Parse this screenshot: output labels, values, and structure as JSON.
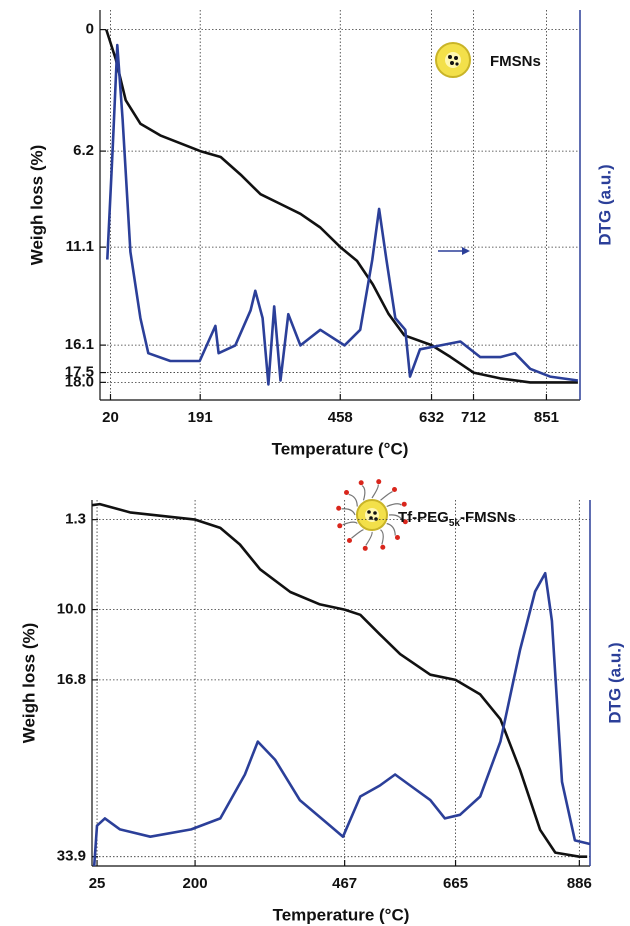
{
  "chart_data": [
    {
      "type": "line",
      "xlabel": "Temperature (°C)",
      "ylabel": "Weigh loss (%)",
      "y2label": "DTG (a.u.)",
      "annotation": "FMSNs",
      "xlim": [
        0,
        915
      ],
      "xticks": [
        20,
        191,
        458,
        632,
        712,
        851
      ],
      "ylim": [
        -1,
        18.9
      ],
      "y_inverted": true,
      "yticks": [
        0,
        6.2,
        11.1,
        16.1,
        17.5,
        {
          "value": 18,
          "label": "18.0"
        }
      ],
      "y2lim": [
        0,
        10
      ],
      "grid": true,
      "series": [
        {
          "color": "#111111",
          "x": [
            12,
            30,
            49,
            77,
            115,
            191,
            230,
            268,
            306,
            344,
            382,
            420,
            458,
            490,
            520,
            550,
            580,
            632,
            668,
            712,
            763,
            820,
            851,
            911
          ],
          "values": [
            0,
            1.5,
            3.6,
            4.8,
            5.4,
            6.2,
            6.5,
            7.4,
            8.4,
            8.9,
            9.4,
            10.1,
            11.1,
            11.8,
            13.0,
            14.5,
            15.6,
            16.1,
            16.7,
            17.5,
            17.8,
            18.0,
            18.0,
            18.0
          ]
        },
        {
          "color": "#2b3f99",
          "axis": "y2",
          "x": [
            14,
            24,
            33,
            43,
            58,
            77,
            92,
            134,
            190,
            220,
            226,
            258,
            287,
            296,
            310,
            321,
            332,
            344,
            359,
            382,
            420,
            466,
            496,
            519,
            532,
            546,
            563,
            582,
            591,
            610,
            649,
            687,
            725,
            763,
            791,
            820,
            858,
            911
          ],
          "values": [
            3.6,
            6.4,
            9.1,
            7.2,
            3.8,
            2.1,
            1.2,
            1.0,
            1.0,
            1.9,
            1.2,
            1.4,
            2.3,
            2.8,
            2.1,
            0.4,
            2.4,
            0.5,
            2.2,
            1.4,
            1.8,
            1.4,
            1.8,
            3.6,
            4.9,
            3.6,
            2.1,
            1.8,
            0.6,
            1.3,
            1.4,
            1.5,
            1.1,
            1.1,
            1.2,
            0.8,
            0.6,
            0.5
          ]
        }
      ]
    },
    {
      "type": "line",
      "xlabel": "Temperature (°C)",
      "ylabel": "Weigh loss (%)",
      "y2label": "DTG (a.u.)",
      "annotation_parts": [
        "Tf-PEG",
        "5k",
        "-FMSNs"
      ],
      "xlim": [
        16,
        905
      ],
      "xticks": [
        25,
        200,
        467,
        665,
        886
      ],
      "ylim": [
        -0.6,
        34.8
      ],
      "y_inverted": true,
      "yticks": [
        1.3,
        {
          "value": 10,
          "label": "10.0"
        },
        16.8,
        33.9
      ],
      "y2lim": [
        0,
        10
      ],
      "grid": true,
      "series": [
        {
          "color": "#111111",
          "x": [
            16,
            30,
            84,
            200,
            245,
            280,
            316,
            370,
            423,
            467,
            495,
            530,
            566,
            620,
            665,
            709,
            745,
            780,
            816,
            843,
            886,
            900
          ],
          "values": [
            -0.1,
            -0.2,
            0.6,
            1.3,
            2.1,
            3.7,
            6.1,
            8.3,
            9.5,
            10.0,
            10.5,
            12.4,
            14.3,
            16.3,
            16.8,
            18.2,
            20.6,
            25.5,
            31.3,
            33.5,
            33.9,
            33.9
          ]
        },
        {
          "color": "#2b3f99",
          "axis": "y2",
          "x": [
            20,
            25,
            39,
            66,
            120,
            193,
            245,
            289,
            312,
            343,
            387,
            441,
            464,
            495,
            530,
            557,
            584,
            620,
            646,
            673,
            709,
            745,
            780,
            807,
            825,
            837,
            855,
            878,
            905
          ],
          "values": [
            0,
            1.1,
            1.3,
            1.0,
            0.8,
            1.0,
            1.3,
            2.5,
            3.4,
            2.9,
            1.8,
            1.1,
            0.8,
            1.9,
            2.2,
            2.5,
            2.2,
            1.8,
            1.3,
            1.4,
            1.9,
            3.4,
            5.9,
            7.5,
            8.0,
            6.7,
            2.3,
            0.7,
            0.6
          ]
        }
      ]
    }
  ]
}
